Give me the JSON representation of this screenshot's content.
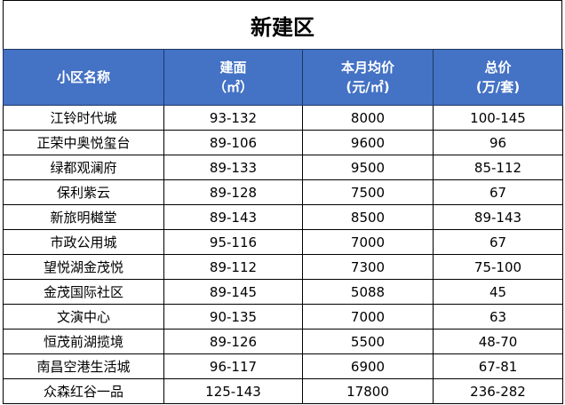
{
  "title": "新建区",
  "headers": [
    {
      "line1": "小区名称",
      "line2": ""
    },
    {
      "line1": "建面",
      "line2": "（㎡）"
    },
    {
      "line1": "本月均价",
      "line2": "(元/㎡)"
    },
    {
      "line1": "总价",
      "line2": "(万/套)"
    }
  ],
  "rows": [
    {
      "name": "江铃时代城",
      "area": "93-132",
      "price": "8000",
      "total": "100-145"
    },
    {
      "name": "正荣中奥悦玺台",
      "area": "89-106",
      "price": "9600",
      "total": "96"
    },
    {
      "name": "绿都观澜府",
      "area": "89-133",
      "price": "9500",
      "total": "85-112"
    },
    {
      "name": "保利紫云",
      "area": "89-128",
      "price": "7500",
      "total": "67"
    },
    {
      "name": "新旅明樾堂",
      "area": "89-143",
      "price": "8500",
      "total": "89-143"
    },
    {
      "name": "市政公用城",
      "area": "95-116",
      "price": "7000",
      "total": "67"
    },
    {
      "name": "望悦湖金茂悦",
      "area": "89-112",
      "price": "7300",
      "total": "75-100"
    },
    {
      "name": "金茂国际社区",
      "area": "89-145",
      "price": "5088",
      "total": "45"
    },
    {
      "name": "文演中心",
      "area": "90-135",
      "price": "7000",
      "total": "63"
    },
    {
      "name": "恒茂前湖揽境",
      "area": "89-126",
      "price": "5500",
      "total": "48-70"
    },
    {
      "name": "南昌空港生活城",
      "area": "96-117",
      "price": "6900",
      "total": "67-81"
    },
    {
      "name": "众森红谷一品",
      "area": "125-143",
      "price": "17800",
      "total": "236-282"
    }
  ]
}
